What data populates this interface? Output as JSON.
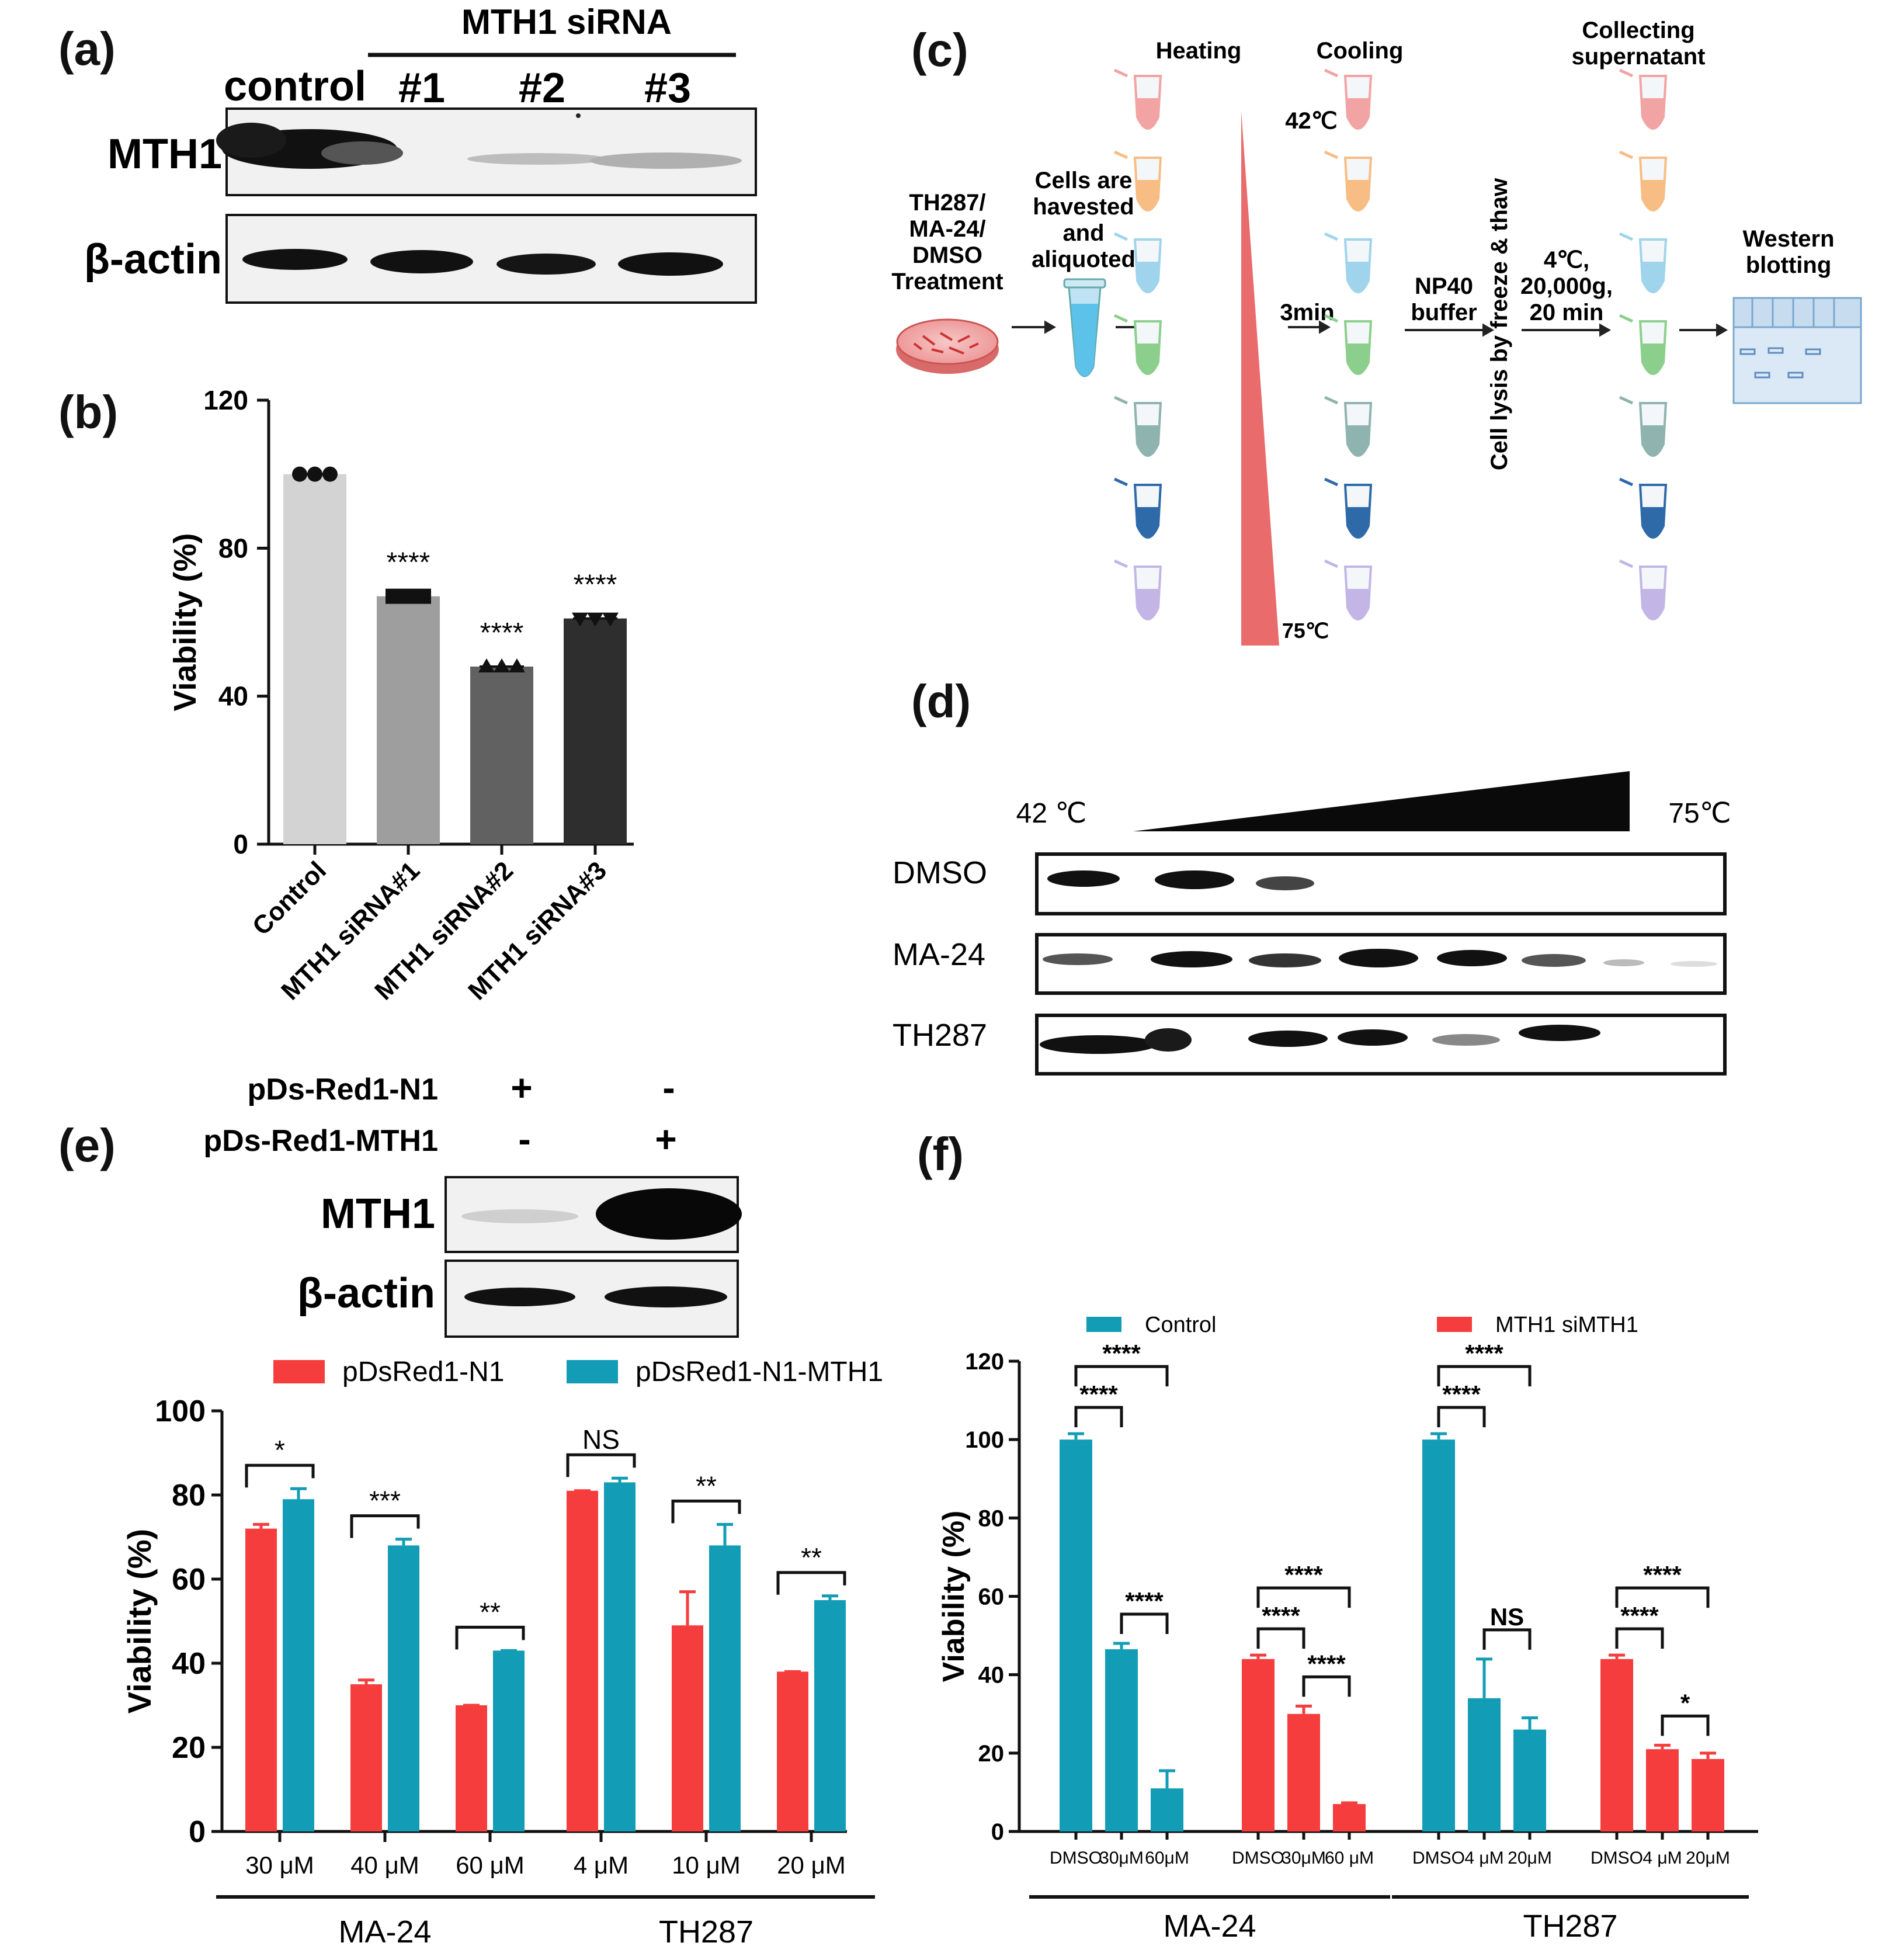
{
  "panels": {
    "a": {
      "label": "(a)",
      "header": "MTH1 siRNA",
      "lanes": [
        "control",
        "#1",
        "#2",
        "#3"
      ],
      "rows": [
        "MTH1",
        "β-actin"
      ]
    },
    "b": {
      "label": "(b)",
      "sig": [
        "****",
        "****",
        "****"
      ]
    },
    "c": {
      "label": "(c)",
      "start": [
        "TH287/",
        "MA-24/",
        "DMSO",
        "Treatment"
      ],
      "harvest": [
        "Cells are",
        "havested",
        "and",
        "aliquoted"
      ],
      "heating": "Heating",
      "cooling": "Cooling",
      "collecting": [
        "Collecting",
        "supernatant"
      ],
      "temp_high": "42℃",
      "temp_low": "75℃",
      "time": "3min",
      "buffer": [
        "NP40",
        "buffer"
      ],
      "lysis": "Cell lysis by freeze & thaw",
      "spin": [
        "4℃,",
        "20,000g,",
        "20 min"
      ],
      "western": [
        "Western",
        "blotting"
      ]
    },
    "d": {
      "label": "(d)",
      "t_start": "42 ℃",
      "t_end": "75℃",
      "rows": [
        "DMSO",
        "MA-24",
        "TH287"
      ]
    },
    "e": {
      "label": "(e)",
      "constructs": [
        "pDs-Red1-N1",
        "pDs-Red1-MTH1"
      ],
      "signs": [
        [
          "+",
          "-"
        ],
        [
          "-",
          "+"
        ]
      ],
      "rows": [
        "MTH1",
        "β-actin"
      ]
    },
    "f": {
      "label": "(f)"
    }
  },
  "chart_data": [
    {
      "panel": "b",
      "type": "bar",
      "categories": [
        "Control",
        "MTH1 siRNA#1",
        "MTH1 siRNA#2",
        "MTH1 siRNA#3"
      ],
      "values": [
        100,
        67,
        48,
        61
      ],
      "colors": [
        "#d3d3d3",
        "#9e9e9e",
        "#616161",
        "#2e2e2e"
      ],
      "markers": [
        "circle",
        "square",
        "triangle-up",
        "triangle-down"
      ],
      "significance": [
        "",
        "****",
        "****",
        "****"
      ],
      "ylabel": "Viability (%)",
      "ylim": [
        0,
        120
      ],
      "yticks": [
        0,
        40,
        80,
        120
      ]
    },
    {
      "panel": "e",
      "type": "bar",
      "categories": [
        "30 μM",
        "40 μM",
        "60 μM",
        "4 μM",
        "10 μM",
        "20 μM"
      ],
      "groups": [
        {
          "name": "MA-24",
          "span": [
            0,
            2
          ]
        },
        {
          "name": "TH287",
          "span": [
            3,
            5
          ]
        }
      ],
      "series": [
        {
          "name": "pDsRed1-N1",
          "color": "#f53d3d",
          "values": [
            72,
            35,
            30,
            81,
            49,
            38
          ],
          "errors": [
            1,
            1,
            0,
            0,
            8,
            0
          ]
        },
        {
          "name": "pDsRed1-N1-MTH1",
          "color": "#129cb5",
          "values": [
            79,
            68,
            43,
            83,
            68,
            55
          ],
          "errors": [
            2.5,
            1.5,
            0,
            1,
            5,
            1
          ]
        }
      ],
      "significance": [
        "*",
        "***",
        "**",
        "NS",
        "**",
        "**"
      ],
      "ylabel": "Viability (%)",
      "ylim": [
        0,
        100
      ],
      "yticks": [
        0,
        20,
        40,
        60,
        80,
        100
      ]
    },
    {
      "panel": "f",
      "type": "bar",
      "legend": [
        {
          "name": "Control",
          "color": "#129cb5"
        },
        {
          "name": "MTH1 siMTH1",
          "color": "#f53d3d"
        }
      ],
      "bars": [
        {
          "label": "DMSO",
          "value": 100,
          "error": 1.5,
          "color": "#129cb5"
        },
        {
          "label": "30μM",
          "value": 46.5,
          "error": 1.5,
          "color": "#129cb5"
        },
        {
          "label": "60μM",
          "value": 11,
          "error": 4.5,
          "color": "#129cb5"
        },
        {
          "label": "DMSO",
          "value": 44,
          "error": 1,
          "color": "#f53d3d"
        },
        {
          "label": "30μM",
          "value": 30,
          "error": 2,
          "color": "#f53d3d"
        },
        {
          "label": "60 μM",
          "value": 7,
          "error": 0.3,
          "color": "#f53d3d"
        },
        {
          "label": "DMSO",
          "value": 100,
          "error": 1.5,
          "color": "#129cb5"
        },
        {
          "label": "4 μM",
          "value": 34,
          "error": 10,
          "color": "#129cb5"
        },
        {
          "label": "20μM",
          "value": 26,
          "error": 3,
          "color": "#129cb5"
        },
        {
          "label": "DMSO",
          "value": 44,
          "error": 1,
          "color": "#f53d3d"
        },
        {
          "label": "4 μM",
          "value": 21,
          "error": 1,
          "color": "#f53d3d"
        },
        {
          "label": "20μM",
          "value": 18.5,
          "error": 1.5,
          "color": "#f53d3d"
        }
      ],
      "groups": [
        {
          "name": "MA-24",
          "span": [
            0,
            5
          ]
        },
        {
          "name": "TH287",
          "span": [
            6,
            11
          ]
        }
      ],
      "brackets": [
        {
          "from": 0,
          "to": 1,
          "label": "****",
          "level": 1
        },
        {
          "from": 0,
          "to": 2,
          "label": "****",
          "level": 2
        },
        {
          "from": 1,
          "to": 2,
          "label": "****",
          "level": 0
        },
        {
          "from": 3,
          "to": 4,
          "label": "****",
          "level": 1
        },
        {
          "from": 3,
          "to": 5,
          "label": "****",
          "level": 2
        },
        {
          "from": 4,
          "to": 5,
          "label": "****",
          "level": 0
        },
        {
          "from": 6,
          "to": 7,
          "label": "****",
          "level": 1
        },
        {
          "from": 6,
          "to": 8,
          "label": "****",
          "level": 2
        },
        {
          "from": 7,
          "to": 8,
          "label": "NS",
          "level": 0
        },
        {
          "from": 9,
          "to": 10,
          "label": "****",
          "level": 1
        },
        {
          "from": 9,
          "to": 11,
          "label": "****",
          "level": 2
        },
        {
          "from": 10,
          "to": 11,
          "label": "*",
          "level": 0
        }
      ],
      "ylabel": "Viability (%)",
      "ylim": [
        0,
        120
      ],
      "yticks": [
        0,
        20,
        40,
        60,
        80,
        100,
        120
      ]
    }
  ]
}
